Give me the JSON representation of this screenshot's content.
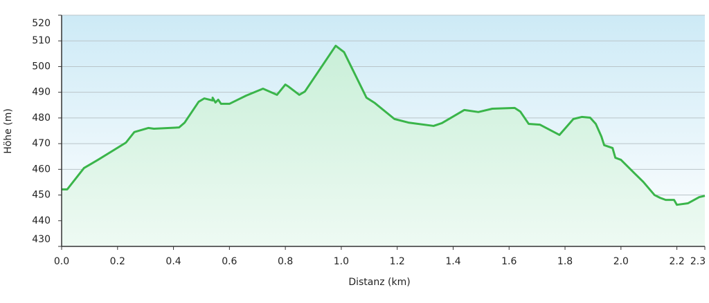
{
  "chart_data": {
    "type": "area",
    "x_label": "Distanz   (km)",
    "y_label": "Höhe (m)",
    "x": [
      0,
      0.02,
      0.08,
      0.13,
      0.23,
      0.26,
      0.31,
      0.33,
      0.42,
      0.44,
      0.49,
      0.51,
      0.54,
      0.54,
      0.55,
      0.56,
      0.57,
      0.6,
      0.63,
      0.66,
      0.72,
      0.77,
      0.8,
      0.81,
      0.85,
      0.87,
      0.98,
      1.01,
      1.09,
      1.12,
      1.19,
      1.24,
      1.33,
      1.36,
      1.44,
      1.49,
      1.54,
      1.62,
      1.64,
      1.67,
      1.71,
      1.78,
      1.83,
      1.86,
      1.89,
      1.91,
      1.93,
      1.94,
      1.97,
      1.98,
      2.0,
      2.05,
      2.08,
      2.12,
      2.14,
      2.16,
      2.19,
      2.2,
      2.24,
      2.28,
      2.3
    ],
    "values": [
      452.2,
      452.2,
      460.5,
      463.7,
      470.4,
      474.5,
      476.1,
      475.8,
      476.3,
      478.2,
      486.3,
      487.6,
      486.8,
      487.9,
      486,
      487.1,
      485.5,
      485.5,
      487.1,
      488.7,
      491.4,
      489,
      493,
      492.3,
      489,
      490.3,
      508.1,
      505.6,
      487.9,
      485.8,
      479.6,
      478.2,
      476.9,
      478,
      483.1,
      482.3,
      483.6,
      483.9,
      482.5,
      477.7,
      477.4,
      473.4,
      479.6,
      480.4,
      480.1,
      477.7,
      472.8,
      469.4,
      468.3,
      464.5,
      463.7,
      458.3,
      455.1,
      450,
      448.9,
      448.1,
      448.1,
      446.2,
      446.8,
      449.2,
      449.7
    ],
    "color": "#3ab54a",
    "xlim": [
      0,
      2.3
    ],
    "xticks": [
      {
        "value": 0,
        "label": "0.0"
      },
      0.2,
      0.4,
      0.6,
      0.8,
      {
        "value": 1,
        "label": "1.0"
      },
      1.2,
      1.4,
      1.6,
      1.8,
      {
        "value": 2,
        "label": "2.0"
      },
      2.2,
      2.3
    ],
    "ylim": [
      430,
      520
    ],
    "yticks": [
      430,
      440,
      450,
      460,
      470,
      480,
      490,
      500,
      510,
      520
    ],
    "grid": true
  }
}
